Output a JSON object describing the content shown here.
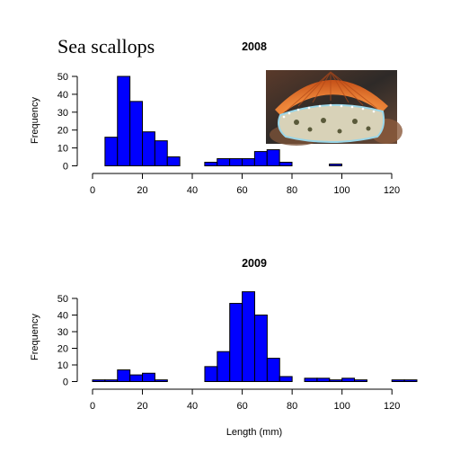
{
  "figure": {
    "title": "Sea scallops",
    "photo_icon": "scallop-photo",
    "colors": {
      "bar_fill": "#0000FF",
      "bar_stroke": "#000000"
    }
  },
  "chart_data": [
    {
      "type": "bar",
      "title": "2008",
      "xlabel": "",
      "ylabel": "Frequency",
      "bin_width": 5,
      "xlim": [
        0,
        120
      ],
      "ylim": [
        0,
        50
      ],
      "xticks": [
        0,
        20,
        40,
        60,
        80,
        100,
        120
      ],
      "yticks": [
        0,
        10,
        20,
        30,
        40,
        50
      ],
      "bins": [
        {
          "x0": 5,
          "x1": 10,
          "value": 16
        },
        {
          "x0": 10,
          "x1": 15,
          "value": 50
        },
        {
          "x0": 15,
          "x1": 20,
          "value": 36
        },
        {
          "x0": 20,
          "x1": 25,
          "value": 19
        },
        {
          "x0": 25,
          "x1": 30,
          "value": 14
        },
        {
          "x0": 30,
          "x1": 35,
          "value": 5
        },
        {
          "x0": 35,
          "x1": 40,
          "value": 0
        },
        {
          "x0": 40,
          "x1": 45,
          "value": 0
        },
        {
          "x0": 45,
          "x1": 50,
          "value": 2
        },
        {
          "x0": 50,
          "x1": 55,
          "value": 4
        },
        {
          "x0": 55,
          "x1": 60,
          "value": 4
        },
        {
          "x0": 60,
          "x1": 65,
          "value": 4
        },
        {
          "x0": 65,
          "x1": 70,
          "value": 8
        },
        {
          "x0": 70,
          "x1": 75,
          "value": 9
        },
        {
          "x0": 75,
          "x1": 80,
          "value": 2
        },
        {
          "x0": 80,
          "x1": 85,
          "value": 0
        },
        {
          "x0": 85,
          "x1": 90,
          "value": 0
        },
        {
          "x0": 90,
          "x1": 95,
          "value": 0
        },
        {
          "x0": 95,
          "x1": 100,
          "value": 1
        }
      ]
    },
    {
      "type": "bar",
      "title": "2009",
      "xlabel": "Length (mm)",
      "ylabel": "Frequency",
      "bin_width": 5,
      "xlim": [
        0,
        130
      ],
      "ylim": [
        0,
        55
      ],
      "xticks": [
        0,
        20,
        40,
        60,
        80,
        100,
        120
      ],
      "yticks": [
        0,
        10,
        20,
        30,
        40,
        50
      ],
      "bins": [
        {
          "x0": 0,
          "x1": 5,
          "value": 1
        },
        {
          "x0": 5,
          "x1": 10,
          "value": 1
        },
        {
          "x0": 10,
          "x1": 15,
          "value": 7
        },
        {
          "x0": 15,
          "x1": 20,
          "value": 4
        },
        {
          "x0": 20,
          "x1": 25,
          "value": 5
        },
        {
          "x0": 25,
          "x1": 30,
          "value": 1
        },
        {
          "x0": 30,
          "x1": 35,
          "value": 0
        },
        {
          "x0": 35,
          "x1": 40,
          "value": 0
        },
        {
          "x0": 40,
          "x1": 45,
          "value": 0
        },
        {
          "x0": 45,
          "x1": 50,
          "value": 9
        },
        {
          "x0": 50,
          "x1": 55,
          "value": 18
        },
        {
          "x0": 55,
          "x1": 60,
          "value": 47
        },
        {
          "x0": 60,
          "x1": 65,
          "value": 54
        },
        {
          "x0": 65,
          "x1": 70,
          "value": 40
        },
        {
          "x0": 70,
          "x1": 75,
          "value": 14
        },
        {
          "x0": 75,
          "x1": 80,
          "value": 3
        },
        {
          "x0": 80,
          "x1": 85,
          "value": 0
        },
        {
          "x0": 85,
          "x1": 90,
          "value": 2
        },
        {
          "x0": 90,
          "x1": 95,
          "value": 2
        },
        {
          "x0": 95,
          "x1": 100,
          "value": 1
        },
        {
          "x0": 100,
          "x1": 105,
          "value": 2
        },
        {
          "x0": 105,
          "x1": 110,
          "value": 1
        },
        {
          "x0": 110,
          "x1": 115,
          "value": 0
        },
        {
          "x0": 115,
          "x1": 120,
          "value": 0
        },
        {
          "x0": 120,
          "x1": 125,
          "value": 1
        },
        {
          "x0": 125,
          "x1": 130,
          "value": 1
        }
      ]
    }
  ]
}
